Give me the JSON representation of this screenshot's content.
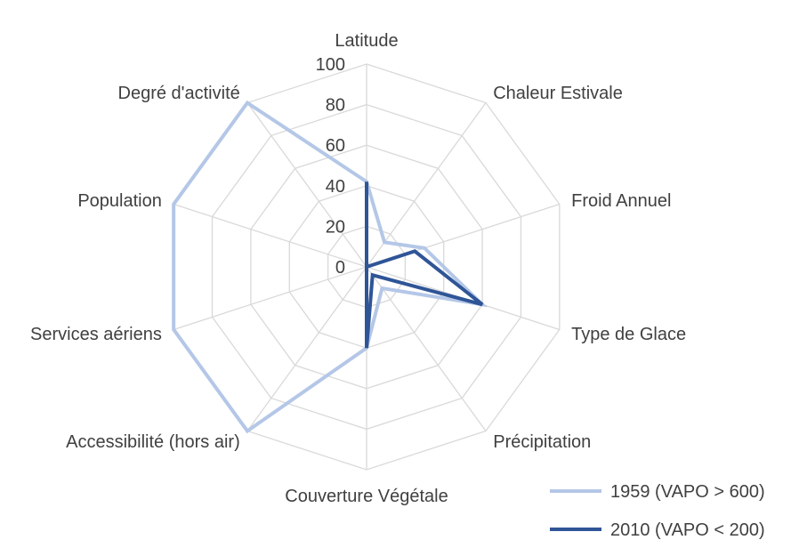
{
  "chart_data": {
    "type": "radar",
    "categories": [
      "Latitude",
      "Chaleur Estivale",
      "Froid Annuel",
      "Type de Glace",
      "Précipitation",
      "Couverture Végétale",
      "Accessibilité (hors air)",
      "Services aériens",
      "Population",
      "Degré d'activité"
    ],
    "series": [
      {
        "name": "1959 (VAPO > 600)",
        "color": "#b4c7e7",
        "values": [
          42,
          15,
          30,
          60,
          13,
          40,
          100,
          100,
          100,
          100
        ]
      },
      {
        "name": "2010 (VAPO < 200)",
        "color": "#2f5597",
        "values": [
          42,
          0,
          25,
          60,
          5,
          40,
          0,
          0,
          0,
          0
        ]
      }
    ],
    "radial_ticks": [
      "0",
      "20",
      "40",
      "60",
      "80",
      "100"
    ],
    "rlim": [
      0,
      100
    ],
    "grid": true,
    "legend_position": "bottom-right"
  }
}
